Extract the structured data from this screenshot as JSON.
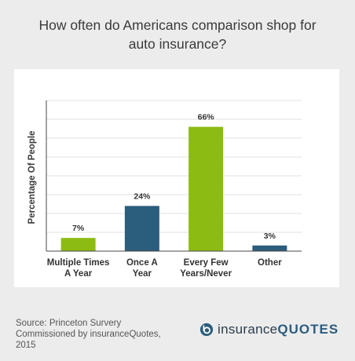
{
  "title": "How often do Americans comparison shop for\nauto insurance?",
  "source": "Source: Princeton Survery Commissioned by insuranceQuotes, 2015",
  "brand": {
    "part1": "insurance",
    "part2": "QUOTES",
    "logo_icon": "insurancequotes-logo-icon"
  },
  "chart_data": {
    "type": "bar",
    "ylabel": "Percentage Of People",
    "ylim": [
      0,
      80
    ],
    "grid": true,
    "categories": [
      [
        "Multiple Times",
        "A Year"
      ],
      [
        "Once A",
        "Year"
      ],
      [
        "Every Few",
        "Years/Never"
      ],
      [
        "Other"
      ]
    ],
    "values": [
      7,
      24,
      66,
      3
    ],
    "value_labels": [
      "7%",
      "24%",
      "66%",
      "3%"
    ],
    "colors": [
      "#8cbc12",
      "#2b5d7d",
      "#8cbc12",
      "#2b5d7d"
    ]
  }
}
